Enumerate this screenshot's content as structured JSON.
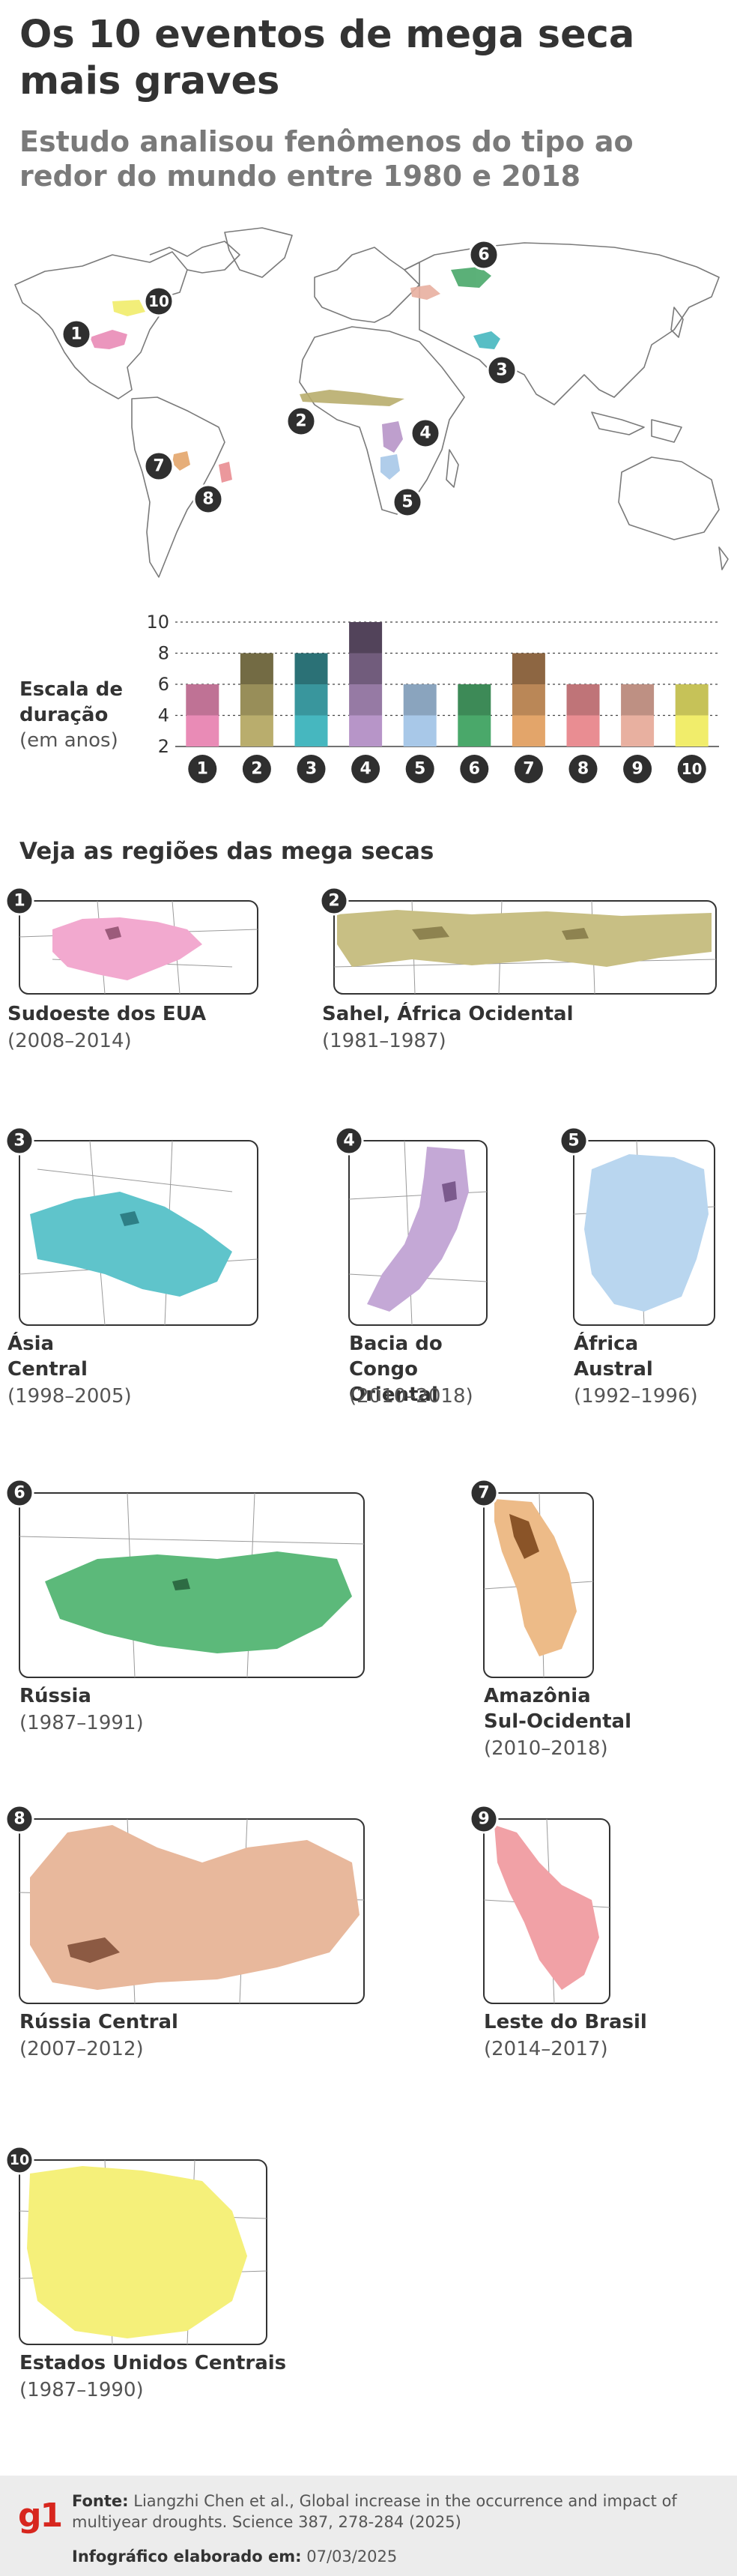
{
  "title": "Os 10 eventos de mega seca mais graves",
  "subtitle": "Estudo analisou fenômenos do tipo ao redor do mundo entre 1980 e 2018",
  "scale": {
    "label_line1": "Escala de",
    "label_line2": "duração",
    "label_unit": "(em anos)"
  },
  "chart_data": {
    "type": "bar",
    "categories": [
      "1",
      "2",
      "3",
      "4",
      "5",
      "6",
      "7",
      "8",
      "9",
      "10"
    ],
    "values": [
      6,
      8,
      8,
      10,
      6,
      6,
      8,
      6,
      6,
      6
    ],
    "ylim": [
      2,
      10
    ],
    "yticks": [
      2,
      4,
      6,
      8,
      10
    ],
    "grid": true,
    "colors": [
      "#e98bb6",
      "#b9ad6d",
      "#46b7bf",
      "#b795c8",
      "#a8c8e8",
      "#4aa86a",
      "#e3a56a",
      "#e98d92",
      "#e8b0a0",
      "#f1ed6b"
    ]
  },
  "section_title": "Veja as regiões das mega secas",
  "regions": [
    {
      "num": "1",
      "name": "Sudoeste dos EUA",
      "years": "(2008–2014)"
    },
    {
      "num": "2",
      "name": "Sahel, África Ocidental",
      "years": "(1981–1987)"
    },
    {
      "num": "3",
      "name_line1": "Ásia",
      "name_line2": "Central",
      "years": "(1998–2005)"
    },
    {
      "num": "4",
      "name_line1": "Bacia do",
      "name_line2": "Congo Oriental",
      "years": "(2010–2018)"
    },
    {
      "num": "5",
      "name_line1": "África",
      "name_line2": "Austral",
      "years": "(1992–1996)"
    },
    {
      "num": "6",
      "name": "Rússia",
      "years": "(1987–1991)"
    },
    {
      "num": "7",
      "name_line1": "Amazônia",
      "name_line2": "Sul-Ocidental",
      "years": "(2010–2018)"
    },
    {
      "num": "8",
      "name": "Rússia Central",
      "years": "(2007–2012)"
    },
    {
      "num": "9",
      "name": "Leste do Brasil",
      "years": "(2014–2017)"
    },
    {
      "num": "10",
      "name": "Estados Unidos Centrais",
      "years": "(1987–1990)"
    }
  ],
  "footer": {
    "logo": "g1",
    "source_label": "Fonte:",
    "source_text": "Liangzhi Chen et al., Global increase in the occurrence and impact of multiyear droughts. Science 387, 278-284 (2025)",
    "made_label": "Infográfico elaborado em:",
    "made_date": "07/03/2025"
  }
}
